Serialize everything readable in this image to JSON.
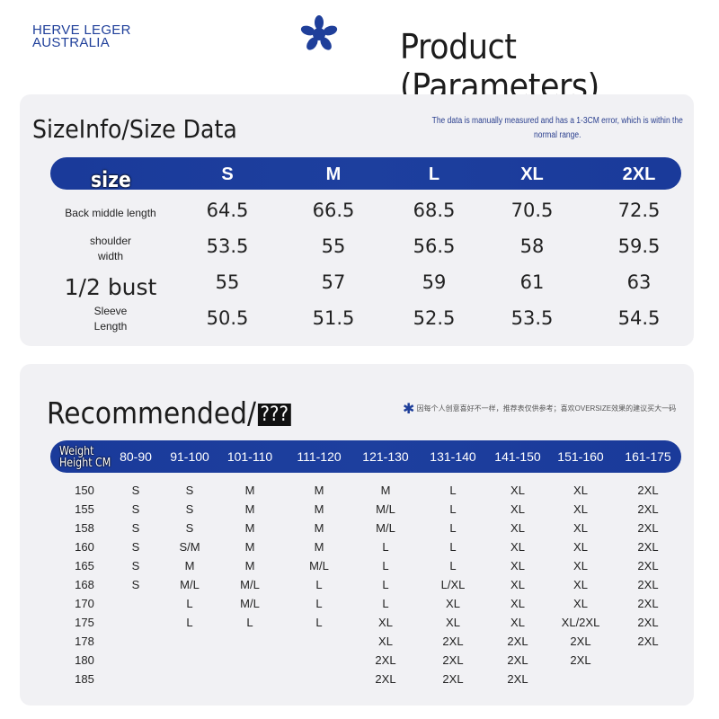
{
  "brand": {
    "line1": "HERVE LEGER",
    "line2": "AUSTRALIA",
    "logo_color": "#1f3f9a"
  },
  "page_title": "Product (Parameters)",
  "size_section": {
    "title": "SizeInfo/Size Data",
    "note": "The data is manually measured and has a 1-3CM error, which is within the normal range.",
    "header_label": "size",
    "sizes": [
      "S",
      "M",
      "L",
      "XL",
      "2XL"
    ],
    "rows": [
      {
        "label": "Back middle length",
        "values": [
          "64.5",
          "66.5",
          "68.5",
          "70.5",
          "72.5"
        ]
      },
      {
        "label": "shoulder\nwidth",
        "values": [
          "53.5",
          "55",
          "56.5",
          "58",
          "59.5"
        ]
      },
      {
        "label": "1/2 bust",
        "values": [
          "55",
          "57",
          "59",
          "61",
          "63"
        ]
      },
      {
        "label": "Sleeve\nLength",
        "values": [
          "50.5",
          "51.5",
          "52.5",
          "53.5",
          "54.5"
        ]
      }
    ]
  },
  "recommended_section": {
    "title": "Recommended/",
    "title_suffix": "???",
    "note": "因每个人创意喜好不一样，推荐表仅供参考；喜欢OVERSIZE效果的建议买大一码",
    "corner_label_weight": "Weight",
    "corner_label_height": "Height CM",
    "weights": [
      "80-90",
      "91-100",
      "101-110",
      "111-120",
      "121-130",
      "131-140",
      "141-150",
      "151-160",
      "161-175"
    ],
    "rows": [
      {
        "height": "150",
        "cells": [
          "S",
          "S",
          "M",
          "M",
          "M",
          "L",
          "XL",
          "XL",
          "2XL"
        ]
      },
      {
        "height": "155",
        "cells": [
          "S",
          "S",
          "M",
          "M",
          "M/L",
          "L",
          "XL",
          "XL",
          "2XL"
        ]
      },
      {
        "height": "158",
        "cells": [
          "S",
          "S",
          "M",
          "M",
          "M/L",
          "L",
          "XL",
          "XL",
          "2XL"
        ]
      },
      {
        "height": "160",
        "cells": [
          "S",
          "S/M",
          "M",
          "M",
          "L",
          "L",
          "XL",
          "XL",
          "2XL"
        ]
      },
      {
        "height": "165",
        "cells": [
          "S",
          "M",
          "M",
          "M/L",
          "L",
          "L",
          "XL",
          "XL",
          "2XL"
        ]
      },
      {
        "height": "168",
        "cells": [
          "S",
          "M/L",
          "M/L",
          "L",
          "L",
          "L/XL",
          "XL",
          "XL",
          "2XL"
        ]
      },
      {
        "height": "170",
        "cells": [
          "",
          "L",
          "M/L",
          "L",
          "L",
          "XL",
          "XL",
          "XL",
          "2XL"
        ]
      },
      {
        "height": "175",
        "cells": [
          "",
          "L",
          "L",
          "L",
          "XL",
          "XL",
          "XL",
          "XL/2XL",
          "2XL"
        ]
      },
      {
        "height": "178",
        "cells": [
          "",
          "",
          "",
          "",
          "XL",
          "2XL",
          "2XL",
          "2XL",
          "2XL"
        ]
      },
      {
        "height": "180",
        "cells": [
          "",
          "",
          "",
          "",
          "2XL",
          "2XL",
          "2XL",
          "2XL",
          ""
        ]
      },
      {
        "height": "185",
        "cells": [
          "",
          "",
          "",
          "",
          "2XL",
          "2XL",
          "2XL",
          "",
          ""
        ]
      }
    ]
  }
}
